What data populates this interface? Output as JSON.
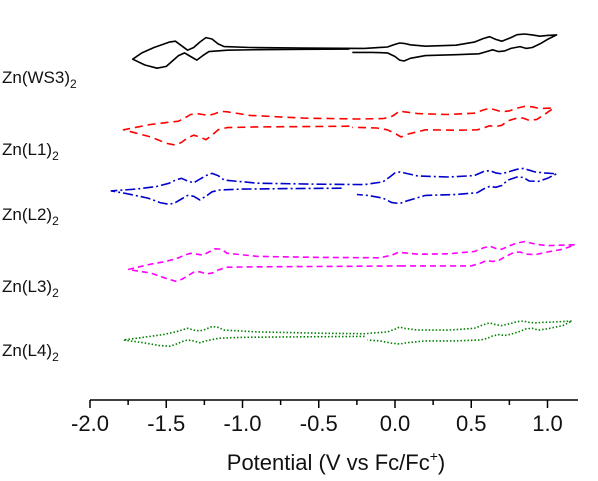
{
  "chart_data": {
    "type": "line",
    "xlabel": "Potential (V vs  Fc/Fc",
    "xlabel_sup": "+",
    "xlabel_end": ")",
    "xlim": [
      -2.0,
      1.2
    ],
    "xticks": [
      "-2.0",
      "-1.5",
      "-1.0",
      "-0.5",
      "0.0",
      "0.5",
      "1.0"
    ],
    "xtick_values": [
      -2.0,
      -1.5,
      -1.0,
      -0.5,
      0.0,
      0.5,
      1.0
    ],
    "grid": false,
    "legend": "none",
    "series": [
      {
        "label_main": "Zn(WS3)",
        "label_sub": "2",
        "color": "#000000",
        "dash": "solid",
        "x": [
          -0.3,
          -0.6,
          -0.9,
          -1.1,
          -1.22,
          -1.26,
          -1.3,
          -1.34,
          -1.38,
          -1.42,
          -1.46,
          -1.5,
          -1.56,
          -1.64,
          -1.72,
          -1.66,
          -1.58,
          -1.48,
          -1.44,
          -1.4,
          -1.36,
          -1.32,
          -1.28,
          -1.24,
          -1.2,
          -1.16,
          -1.12,
          -0.95,
          -0.6,
          -0.2,
          -0.05,
          0.0,
          0.03,
          0.06,
          0.1,
          0.2,
          0.4,
          0.52,
          0.58,
          0.62,
          0.66,
          0.7,
          0.76,
          0.8,
          0.85,
          0.9,
          0.95,
          1.0,
          1.06,
          1.0,
          0.95,
          0.9,
          0.86,
          0.82,
          0.76,
          0.72,
          0.68,
          0.64,
          0.6,
          0.55,
          0.4,
          0.2,
          0.1,
          0.06,
          0.03,
          0.0,
          -0.05,
          -0.15,
          -0.28
        ],
        "y": [
          0.16,
          0.15,
          0.13,
          0.1,
          0.02,
          -0.2,
          -0.45,
          -0.25,
          -0.05,
          -0.2,
          -0.5,
          -0.8,
          -0.9,
          -0.72,
          -0.4,
          -0.05,
          0.25,
          0.55,
          0.6,
          0.35,
          0.1,
          0.25,
          0.55,
          0.8,
          0.72,
          0.45,
          0.3,
          0.25,
          0.22,
          0.2,
          0.28,
          0.42,
          0.5,
          0.48,
          0.4,
          0.32,
          0.38,
          0.55,
          0.75,
          0.85,
          0.7,
          0.6,
          0.8,
          0.96,
          1.0,
          0.95,
          0.88,
          0.92,
          0.95,
          0.7,
          0.45,
          0.25,
          0.2,
          0.3,
          0.2,
          0.06,
          0.02,
          0.12,
          0.02,
          -0.1,
          -0.15,
          -0.2,
          -0.35,
          -0.5,
          -0.45,
          -0.25,
          -0.05,
          -0.02,
          -0.02
        ]
      },
      {
        "label_main": "Zn(L1)",
        "label_sub": "2",
        "color": "#ff0000",
        "dash": "8,5",
        "x": [
          -0.3,
          -0.6,
          -0.9,
          -1.1,
          -1.16,
          -1.2,
          -1.24,
          -1.28,
          -1.32,
          -1.36,
          -1.4,
          -1.44,
          -1.5,
          -1.6,
          -1.78,
          -1.6,
          -1.5,
          -1.42,
          -1.38,
          -1.34,
          -1.3,
          -1.26,
          -1.22,
          -1.18,
          -1.14,
          -1.1,
          -0.95,
          -0.6,
          -0.25,
          -0.08,
          -0.03,
          0.0,
          0.03,
          0.06,
          0.15,
          0.35,
          0.52,
          0.58,
          0.62,
          0.66,
          0.7,
          0.75,
          0.8,
          0.85,
          0.9,
          0.95,
          1.0,
          1.04,
          0.98,
          0.93,
          0.88,
          0.84,
          0.8,
          0.74,
          0.7,
          0.66,
          0.62,
          0.58,
          0.54,
          0.4,
          0.2,
          0.08,
          0.04,
          0.0,
          -0.05,
          -0.12,
          -0.28
        ],
        "y": [
          0.1,
          0.08,
          0.06,
          0.02,
          -0.1,
          -0.4,
          -0.65,
          -0.5,
          -0.4,
          -0.55,
          -0.8,
          -0.95,
          -0.85,
          -0.5,
          -0.1,
          0.2,
          0.3,
          0.38,
          0.55,
          0.75,
          0.8,
          0.75,
          0.7,
          0.8,
          0.92,
          0.9,
          0.7,
          0.55,
          0.5,
          0.52,
          0.6,
          0.75,
          0.95,
          0.9,
          0.8,
          0.75,
          0.82,
          1.0,
          1.1,
          1.0,
          0.9,
          0.95,
          1.1,
          1.2,
          1.18,
          1.08,
          1.1,
          1.1,
          0.75,
          0.48,
          0.42,
          0.55,
          0.55,
          0.4,
          0.15,
          0.08,
          0.12,
          0.0,
          -0.1,
          -0.12,
          -0.1,
          -0.35,
          -0.5,
          -0.3,
          -0.1,
          0.0,
          0.04
        ]
      },
      {
        "label_main": "Zn(L2)",
        "label_sub": "2",
        "color": "#0000cc",
        "dash": "10,3,2,3",
        "x": [
          -0.35,
          -0.7,
          -1.0,
          -1.15,
          -1.2,
          -1.24,
          -1.28,
          -1.32,
          -1.36,
          -1.4,
          -1.44,
          -1.48,
          -1.54,
          -1.62,
          -1.76,
          -1.86,
          -1.7,
          -1.56,
          -1.48,
          -1.44,
          -1.4,
          -1.36,
          -1.32,
          -1.28,
          -1.24,
          -1.2,
          -1.16,
          -1.12,
          -0.9,
          -0.55,
          -0.2,
          -0.08,
          -0.03,
          0.0,
          0.03,
          0.06,
          0.15,
          0.35,
          0.52,
          0.58,
          0.62,
          0.66,
          0.7,
          0.76,
          0.8,
          0.84,
          0.88,
          0.92,
          0.98,
          1.06,
          1.0,
          0.94,
          0.88,
          0.84,
          0.8,
          0.74,
          0.7,
          0.66,
          0.62,
          0.58,
          0.54,
          0.4,
          0.2,
          0.08,
          0.03,
          -0.02,
          -0.08,
          -0.18,
          -0.25
        ],
        "y": [
          0.1,
          0.08,
          0.05,
          0.0,
          -0.1,
          -0.35,
          -0.55,
          -0.35,
          -0.3,
          -0.5,
          -0.7,
          -0.8,
          -0.7,
          -0.45,
          -0.2,
          -0.05,
          0.05,
          0.2,
          0.38,
          0.55,
          0.65,
          0.5,
          0.4,
          0.6,
          0.8,
          0.92,
          0.8,
          0.55,
          0.38,
          0.33,
          0.3,
          0.45,
          0.75,
          0.95,
          1.0,
          0.95,
          0.78,
          0.72,
          0.8,
          1.02,
          1.08,
          0.95,
          0.9,
          1.05,
          1.15,
          1.2,
          1.1,
          1.0,
          0.95,
          0.9,
          0.65,
          0.48,
          0.5,
          0.7,
          0.72,
          0.55,
          0.25,
          0.15,
          0.2,
          0.05,
          -0.15,
          -0.25,
          -0.3,
          -0.6,
          -0.75,
          -0.7,
          -0.45,
          -0.3,
          -0.25
        ]
      },
      {
        "label_main": "Zn(L3)",
        "label_sub": "2",
        "color": "#ff00ff",
        "dash": "6,4",
        "x": [
          0.05,
          -0.4,
          -0.9,
          -1.1,
          -1.16,
          -1.2,
          -1.24,
          -1.28,
          -1.32,
          -1.36,
          -1.4,
          -1.44,
          -1.5,
          -1.6,
          -1.75,
          -1.6,
          -1.5,
          -1.42,
          -1.38,
          -1.34,
          -1.3,
          -1.26,
          -1.22,
          -1.18,
          -1.14,
          -1.1,
          -0.9,
          -0.5,
          -0.1,
          -0.02,
          0.02,
          0.06,
          0.15,
          0.35,
          0.52,
          0.58,
          0.62,
          0.66,
          0.7,
          0.76,
          0.8,
          0.85,
          0.9,
          0.95,
          1.0,
          1.08,
          1.18,
          1.1,
          1.0,
          0.92,
          0.86,
          0.82,
          0.78,
          0.72,
          0.68,
          0.64,
          0.6,
          0.56,
          0.5,
          0.3,
          0.1,
          0.05
        ],
        "y": [
          -0.05,
          -0.08,
          -0.1,
          -0.12,
          -0.28,
          -0.45,
          -0.5,
          -0.38,
          -0.4,
          -0.6,
          -0.8,
          -0.9,
          -0.75,
          -0.45,
          -0.25,
          0.05,
          0.2,
          0.4,
          0.55,
          0.65,
          0.6,
          0.55,
          0.72,
          0.9,
          0.88,
          0.65,
          0.48,
          0.42,
          0.4,
          0.55,
          0.7,
          0.68,
          0.6,
          0.62,
          0.75,
          0.95,
          1.05,
          0.92,
          0.88,
          1.1,
          1.22,
          1.3,
          1.2,
          1.12,
          1.08,
          1.1,
          1.12,
          0.88,
          0.72,
          0.58,
          0.6,
          0.72,
          0.7,
          0.45,
          0.25,
          0.2,
          0.25,
          0.1,
          -0.05,
          -0.05,
          -0.05,
          -0.05
        ]
      },
      {
        "label_main": "Zn(L4)",
        "label_sub": "2",
        "color": "#008000",
        "dash": "1.5,2",
        "x": [
          -0.2,
          -0.6,
          -1.0,
          -1.15,
          -1.2,
          -1.24,
          -1.28,
          -1.32,
          -1.36,
          -1.4,
          -1.44,
          -1.48,
          -1.55,
          -1.65,
          -1.78,
          -1.65,
          -1.52,
          -1.44,
          -1.4,
          -1.36,
          -1.32,
          -1.28,
          -1.24,
          -1.2,
          -1.16,
          -1.12,
          -0.9,
          -0.5,
          -0.2,
          -0.05,
          0.0,
          0.03,
          0.06,
          0.15,
          0.35,
          0.52,
          0.58,
          0.62,
          0.66,
          0.7,
          0.76,
          0.8,
          0.84,
          0.88,
          0.92,
          0.96,
          1.04,
          1.16,
          1.1,
          1.0,
          0.94,
          0.9,
          0.86,
          0.82,
          0.76,
          0.72,
          0.68,
          0.64,
          0.6,
          0.56,
          0.4,
          0.2,
          0.08,
          0.03,
          -0.02,
          -0.1,
          -0.18
        ],
        "y": [
          0.2,
          0.18,
          0.15,
          0.1,
          0.02,
          -0.05,
          -0.15,
          -0.05,
          0.0,
          -0.1,
          -0.25,
          -0.35,
          -0.3,
          -0.15,
          0.0,
          0.15,
          0.3,
          0.45,
          0.55,
          0.65,
          0.55,
          0.5,
          0.6,
          0.75,
          0.7,
          0.55,
          0.45,
          0.38,
          0.35,
          0.45,
          0.6,
          0.72,
          0.65,
          0.55,
          0.55,
          0.65,
          0.85,
          0.95,
          0.85,
          0.8,
          0.92,
          1.02,
          1.05,
          0.98,
          0.95,
          0.98,
          1.0,
          1.05,
          0.8,
          0.62,
          0.55,
          0.65,
          0.62,
          0.48,
          0.32,
          0.25,
          0.3,
          0.22,
          0.08,
          0.0,
          -0.05,
          -0.05,
          -0.15,
          -0.22,
          -0.18,
          -0.05,
          0.0
        ]
      }
    ]
  }
}
